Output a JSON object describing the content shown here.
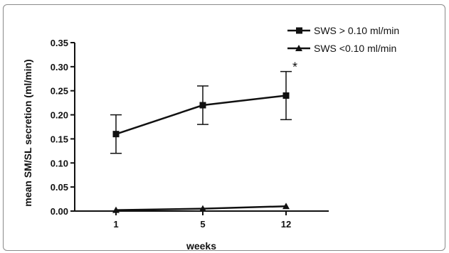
{
  "chart_data": {
    "type": "line",
    "xlabel": "weeks",
    "ylabel": "mean SM/SL secretion (ml/min)",
    "categories": [
      "1",
      "5",
      "12"
    ],
    "ylim": [
      0,
      0.35
    ],
    "yticks": [
      "0.00",
      "0.05",
      "0.10",
      "0.15",
      "0.20",
      "0.25",
      "0.30",
      "0.35"
    ],
    "grid": false,
    "legend_position": "top-right",
    "series": [
      {
        "name": "SWS > 0.10 ml/min",
        "marker": "square",
        "values": [
          0.16,
          0.22,
          0.24
        ],
        "error": [
          0.04,
          0.04,
          0.05
        ]
      },
      {
        "name": "SWS <0.10 ml/min",
        "marker": "triangle",
        "values": [
          0.002,
          0.005,
          0.01
        ],
        "error": [
          0,
          0,
          0
        ]
      }
    ],
    "annotations": [
      {
        "text": "*",
        "category": "12",
        "series": 0
      }
    ],
    "colors": {
      "line": "#111111",
      "frame": "#8a8a8a"
    }
  }
}
